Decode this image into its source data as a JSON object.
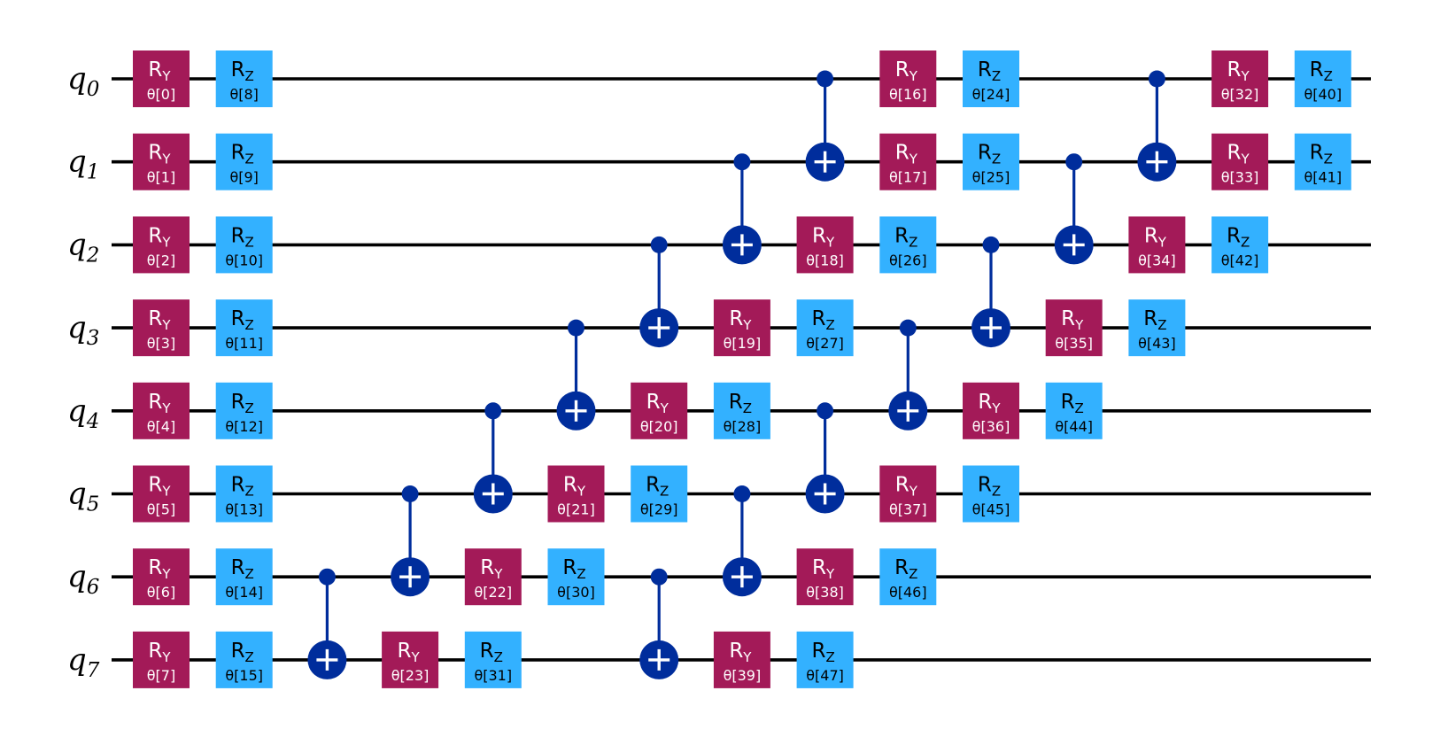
{
  "colors": {
    "ry": "#A31A58",
    "rz": "#33B1FF",
    "cx": "#002D9C",
    "wire": "#000000"
  },
  "qubits": [
    {
      "base": "q",
      "sub": "0"
    },
    {
      "base": "q",
      "sub": "1"
    },
    {
      "base": "q",
      "sub": "2"
    },
    {
      "base": "q",
      "sub": "3"
    },
    {
      "base": "q",
      "sub": "4"
    },
    {
      "base": "q",
      "sub": "5"
    },
    {
      "base": "q",
      "sub": "6"
    },
    {
      "base": "q",
      "sub": "7"
    }
  ],
  "gate_labels": {
    "ry": {
      "base": "R",
      "sub": "Y"
    },
    "rz": {
      "base": "R",
      "sub": "Z"
    }
  },
  "layers": [
    {
      "type": "rotations",
      "gates": [
        {
          "gate": "ry",
          "qubit": 0,
          "param": "θ[0]"
        },
        {
          "gate": "ry",
          "qubit": 1,
          "param": "θ[1]"
        },
        {
          "gate": "ry",
          "qubit": 2,
          "param": "θ[2]"
        },
        {
          "gate": "ry",
          "qubit": 3,
          "param": "θ[3]"
        },
        {
          "gate": "ry",
          "qubit": 4,
          "param": "θ[4]"
        },
        {
          "gate": "ry",
          "qubit": 5,
          "param": "θ[5]"
        },
        {
          "gate": "ry",
          "qubit": 6,
          "param": "θ[6]"
        },
        {
          "gate": "ry",
          "qubit": 7,
          "param": "θ[7]"
        }
      ]
    },
    {
      "type": "rotations",
      "gates": [
        {
          "gate": "rz",
          "qubit": 0,
          "param": "θ[8]"
        },
        {
          "gate": "rz",
          "qubit": 1,
          "param": "θ[9]"
        },
        {
          "gate": "rz",
          "qubit": 2,
          "param": "θ[10]"
        },
        {
          "gate": "rz",
          "qubit": 3,
          "param": "θ[11]"
        },
        {
          "gate": "rz",
          "qubit": 4,
          "param": "θ[12]"
        },
        {
          "gate": "rz",
          "qubit": 5,
          "param": "θ[13]"
        },
        {
          "gate": "rz",
          "qubit": 6,
          "param": "θ[14]"
        },
        {
          "gate": "rz",
          "qubit": 7,
          "param": "θ[15]"
        }
      ]
    },
    {
      "type": "cx",
      "control": 6,
      "target": 7
    },
    {
      "type": "mixed",
      "cx": {
        "control": 5,
        "target": 6
      },
      "gates": [
        {
          "gate": "ry",
          "qubit": 7,
          "param": "θ[23]"
        }
      ]
    },
    {
      "type": "mixed",
      "cx": {
        "control": 4,
        "target": 5
      },
      "gates": [
        {
          "gate": "ry",
          "qubit": 6,
          "param": "θ[22]"
        },
        {
          "gate": "rz",
          "qubit": 7,
          "param": "θ[31]"
        }
      ]
    },
    {
      "type": "mixed",
      "cx": {
        "control": 3,
        "target": 4
      },
      "gates": [
        {
          "gate": "ry",
          "qubit": 5,
          "param": "θ[21]"
        },
        {
          "gate": "rz",
          "qubit": 6,
          "param": "θ[30]"
        }
      ]
    },
    {
      "type": "mixed",
      "cx": {
        "control": 2,
        "target": 3
      },
      "gates": [
        {
          "gate": "ry",
          "qubit": 4,
          "param": "θ[20]"
        },
        {
          "gate": "rz",
          "qubit": 5,
          "param": "θ[29]"
        }
      ],
      "cx2": {
        "control": 6,
        "target": 7
      }
    },
    {
      "type": "mixed",
      "cx": {
        "control": 1,
        "target": 2
      },
      "gates": [
        {
          "gate": "ry",
          "qubit": 3,
          "param": "θ[19]"
        },
        {
          "gate": "rz",
          "qubit": 4,
          "param": "θ[28]"
        },
        {
          "gate": "ry",
          "qubit": 7,
          "param": "θ[39]"
        }
      ],
      "cx2": {
        "control": 5,
        "target": 6
      }
    },
    {
      "type": "mixed",
      "cx": {
        "control": 0,
        "target": 1
      },
      "gates": [
        {
          "gate": "ry",
          "qubit": 2,
          "param": "θ[18]"
        },
        {
          "gate": "rz",
          "qubit": 3,
          "param": "θ[27]"
        },
        {
          "gate": "ry",
          "qubit": 6,
          "param": "θ[38]"
        },
        {
          "gate": "rz",
          "qubit": 7,
          "param": "θ[47]"
        }
      ],
      "cx2": {
        "control": 4,
        "target": 5
      }
    },
    {
      "type": "mixed",
      "gates": [
        {
          "gate": "ry",
          "qubit": 0,
          "param": "θ[16]"
        },
        {
          "gate": "ry",
          "qubit": 1,
          "param": "θ[17]"
        },
        {
          "gate": "rz",
          "qubit": 2,
          "param": "θ[26]"
        },
        {
          "gate": "ry",
          "qubit": 5,
          "param": "θ[37]"
        },
        {
          "gate": "rz",
          "qubit": 6,
          "param": "θ[46]"
        }
      ],
      "cx2": {
        "control": 3,
        "target": 4
      }
    },
    {
      "type": "mixed",
      "gates": [
        {
          "gate": "rz",
          "qubit": 0,
          "param": "θ[24]"
        },
        {
          "gate": "rz",
          "qubit": 1,
          "param": "θ[25]"
        },
        {
          "gate": "ry",
          "qubit": 4,
          "param": "θ[36]"
        },
        {
          "gate": "rz",
          "qubit": 5,
          "param": "θ[45]"
        }
      ],
      "cx2": {
        "control": 2,
        "target": 3
      }
    },
    {
      "type": "mixed",
      "gates": [
        {
          "gate": "ry",
          "qubit": 3,
          "param": "θ[35]"
        },
        {
          "gate": "rz",
          "qubit": 4,
          "param": "θ[44]"
        }
      ],
      "cx2": {
        "control": 1,
        "target": 2
      }
    },
    {
      "type": "mixed",
      "gates": [
        {
          "gate": "ry",
          "qubit": 2,
          "param": "θ[34]"
        },
        {
          "gate": "rz",
          "qubit": 3,
          "param": "θ[43]"
        }
      ],
      "cx2": {
        "control": 0,
        "target": 1
      }
    },
    {
      "type": "mixed",
      "gates": [
        {
          "gate": "ry",
          "qubit": 0,
          "param": "θ[32]"
        },
        {
          "gate": "ry",
          "qubit": 1,
          "param": "θ[33]"
        },
        {
          "gate": "rz",
          "qubit": 2,
          "param": "θ[42]"
        }
      ]
    },
    {
      "type": "mixed",
      "gates": [
        {
          "gate": "rz",
          "qubit": 0,
          "param": "θ[40]"
        },
        {
          "gate": "rz",
          "qubit": 1,
          "param": "θ[41]"
        }
      ]
    }
  ]
}
